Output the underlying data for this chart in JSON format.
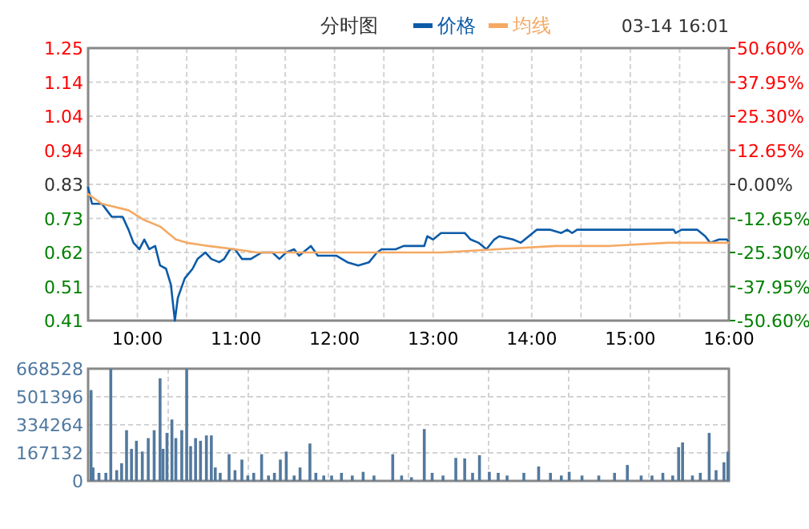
{
  "chart_data": [
    {
      "type": "line",
      "title": "分时图",
      "legend": "top",
      "grid": true,
      "annotations": [
        "03-14 16:01"
      ],
      "xlim": [
        9.5,
        16
      ],
      "xticks": [
        {
          "value": 10,
          "label": "10:00"
        },
        {
          "value": 10.5,
          "label": null
        },
        {
          "value": 11,
          "label": "11:00"
        },
        {
          "value": 11.5,
          "label": null
        },
        {
          "value": 12,
          "label": "12:00"
        },
        {
          "value": 12.5,
          "label": null
        },
        {
          "value": 13,
          "label": "13:00"
        },
        {
          "value": 13.5,
          "label": null
        },
        {
          "value": 14,
          "label": "14:00"
        },
        {
          "value": 14.5,
          "label": null
        },
        {
          "value": 15,
          "label": "15:00"
        },
        {
          "value": 15.5,
          "label": null
        },
        {
          "value": 16,
          "label": "16:00"
        }
      ],
      "ylim": [
        0.41,
        1.25
      ],
      "yticks": [
        0.41,
        {
          "value": 0.515,
          "label": "0.51"
        },
        0.62,
        {
          "value": 0.725,
          "label": "0.73"
        },
        0.83,
        {
          "value": 0.935,
          "label": "0.94"
        },
        1.04,
        {
          "value": 1.145,
          "label": "1.14"
        },
        1.25
      ],
      "y2lim": [
        -50.6,
        50.6
      ],
      "y2ticks": [
        {
          "value": -50.6,
          "label": "-50.60%"
        },
        {
          "value": -37.95,
          "label": "-37.95%"
        },
        {
          "value": -25.3,
          "label": "-25.30%"
        },
        {
          "value": -12.65,
          "label": "-12.65%"
        },
        {
          "value": 0,
          "label": "0.00%"
        },
        {
          "value": 12.65,
          "label": "12.65%"
        },
        {
          "value": 25.3,
          "label": "25.30%"
        },
        {
          "value": 37.95,
          "label": "37.95%"
        },
        {
          "value": 50.6,
          "label": "50.60%"
        }
      ],
      "series": [
        {
          "name": "价格",
          "color": "#0c5ba8",
          "x": [
            9.5,
            9.54,
            9.64,
            9.69,
            9.74,
            9.85,
            9.91,
            9.96,
            10.02,
            10.07,
            10.12,
            10.18,
            10.23,
            10.29,
            10.34,
            10.38,
            10.41,
            10.48,
            10.56,
            10.61,
            10.69,
            10.75,
            10.83,
            10.88,
            10.94,
            10.99,
            11.06,
            11.15,
            11.26,
            11.37,
            11.44,
            11.51,
            11.59,
            11.64,
            11.76,
            11.83,
            11.91,
            12.02,
            12.13,
            12.24,
            12.35,
            12.43,
            12.48,
            12.62,
            12.7,
            12.83,
            12.91,
            12.94,
            13.0,
            13.08,
            13.32,
            13.38,
            13.46,
            13.54,
            13.62,
            13.67,
            13.81,
            13.89,
            13.97,
            14.05,
            14.19,
            14.3,
            14.36,
            14.41,
            14.46,
            14.76,
            15.44,
            15.46,
            15.52,
            15.68,
            15.76,
            15.81,
            15.9,
            15.98,
            16.0
          ],
          "values": [
            0.82,
            0.77,
            0.77,
            0.75,
            0.73,
            0.73,
            0.69,
            0.65,
            0.63,
            0.66,
            0.63,
            0.64,
            0.58,
            0.57,
            0.52,
            0.41,
            0.48,
            0.54,
            0.57,
            0.6,
            0.62,
            0.6,
            0.59,
            0.6,
            0.63,
            0.63,
            0.6,
            0.6,
            0.62,
            0.62,
            0.6,
            0.62,
            0.63,
            0.61,
            0.64,
            0.61,
            0.61,
            0.61,
            0.59,
            0.58,
            0.59,
            0.62,
            0.63,
            0.63,
            0.64,
            0.64,
            0.64,
            0.67,
            0.66,
            0.68,
            0.68,
            0.66,
            0.65,
            0.63,
            0.66,
            0.67,
            0.66,
            0.65,
            0.67,
            0.69,
            0.69,
            0.68,
            0.69,
            0.68,
            0.69,
            0.69,
            0.69,
            0.68,
            0.69,
            0.69,
            0.67,
            0.65,
            0.66,
            0.66,
            0.65
          ]
        },
        {
          "name": "均线",
          "color": "#f5a964",
          "x": [
            9.5,
            9.64,
            9.91,
            10.07,
            10.23,
            10.39,
            10.5,
            10.72,
            10.99,
            11.21,
            11.97,
            12.83,
            13.08,
            13.65,
            14.24,
            14.78,
            15.38,
            16.0
          ],
          "values": [
            0.8,
            0.77,
            0.75,
            0.72,
            0.7,
            0.66,
            0.65,
            0.64,
            0.63,
            0.62,
            0.62,
            0.62,
            0.62,
            0.63,
            0.64,
            0.64,
            0.65,
            0.65
          ]
        }
      ]
    },
    {
      "type": "bar",
      "grid": true,
      "tick_labels": "y",
      "xlim": [
        9.5,
        16
      ],
      "xticks": [
        {
          "value": 10.3125,
          "label": null
        },
        {
          "value": 11.125,
          "label": null
        },
        {
          "value": 11.9375,
          "label": null
        },
        {
          "value": 12.75,
          "label": null
        },
        {
          "value": 13.5625,
          "label": null
        },
        {
          "value": 14.375,
          "label": null
        },
        {
          "value": 15.1875,
          "label": null
        }
      ],
      "ylim": [
        0,
        668528
      ],
      "yticks": [
        0,
        167132,
        334264,
        501396,
        668528
      ],
      "series": [
        {
          "color": "#53799e",
          "x": [
            9.53,
            9.55,
            9.61,
            9.68,
            9.73,
            9.79,
            9.84,
            9.89,
            9.94,
            9.99,
            10.05,
            10.11,
            10.17,
            10.23,
            10.26,
            10.3,
            10.35,
            10.39,
            10.45,
            10.5,
            10.54,
            10.59,
            10.64,
            10.7,
            10.75,
            10.79,
            10.84,
            10.93,
            10.99,
            11.06,
            11.12,
            11.18,
            11.26,
            11.33,
            11.39,
            11.45,
            11.51,
            11.59,
            11.65,
            11.75,
            11.81,
            11.89,
            11.97,
            12.07,
            12.18,
            12.29,
            12.4,
            12.59,
            12.68,
            12.78,
            12.91,
            12.99,
            13.1,
            13.23,
            13.32,
            13.4,
            13.47,
            13.57,
            13.66,
            13.75,
            13.92,
            14.07,
            14.19,
            14.3,
            14.38,
            14.51,
            14.68,
            14.84,
            14.97,
            15.11,
            15.22,
            15.33,
            15.43,
            15.49,
            15.53,
            15.63,
            15.71,
            15.8,
            15.87,
            15.95,
            15.99
          ],
          "values": [
            541000,
            80000,
            48000,
            48000,
            668000,
            64000,
            105000,
            302000,
            191000,
            239000,
            175000,
            255000,
            302000,
            611000,
            191000,
            286000,
            366000,
            255000,
            302000,
            668000,
            207000,
            255000,
            239000,
            271000,
            271000,
            80000,
            48000,
            159000,
            64000,
            127000,
            32000,
            48000,
            159000,
            32000,
            48000,
            127000,
            175000,
            32000,
            80000,
            223000,
            48000,
            32000,
            32000,
            48000,
            32000,
            54000,
            32000,
            159000,
            32000,
            22000,
            309000,
            48000,
            32000,
            137000,
            134000,
            48000,
            153000,
            54000,
            48000,
            32000,
            48000,
            86000,
            48000,
            32000,
            54000,
            32000,
            32000,
            48000,
            95000,
            32000,
            32000,
            48000,
            32000,
            201000,
            229000,
            32000,
            48000,
            286000,
            64000,
            111000,
            175000
          ]
        }
      ]
    }
  ]
}
